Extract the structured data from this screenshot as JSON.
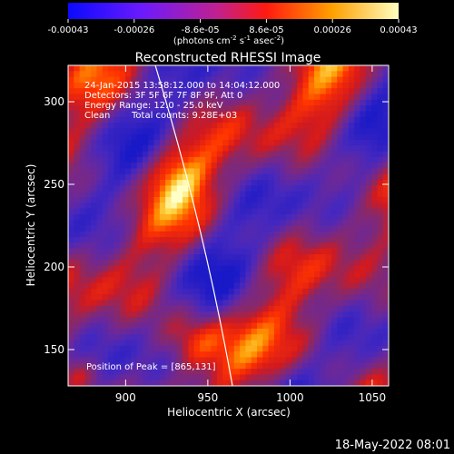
{
  "chart_data": {
    "type": "heatmap",
    "title": "Reconstructed RHESSI Image",
    "xlabel": "Heliocentric X (arcsec)",
    "ylabel": "Heliocentric Y (arcsec)",
    "xlim": [
      865,
      1060
    ],
    "ylim": [
      128,
      322
    ],
    "xticks": [
      "900",
      "950",
      "1000",
      "1050"
    ],
    "yticks": [
      "150",
      "200",
      "250",
      "300"
    ],
    "colorbar": {
      "ticks": [
        "-0.00043",
        "-0.00026",
        "-8.6e-05",
        "8.6e-05",
        "0.00026",
        "0.00043"
      ],
      "range": [
        -0.00043,
        0.00043
      ],
      "units_prefix": "(photons cm",
      "units_sup1": "-2",
      "units_mid": " s",
      "units_sup2": "-1",
      "units_mid2": " asec",
      "units_sup3": "-2",
      "units_suffix": ")"
    },
    "annotations": {
      "time": "24-Jan-2015 13:58:12.000 to 14:04:12.000",
      "detectors": "Detectors: 3F 5F 6F 7F 8F 9F, Att 0",
      "energy": "Energy Range: 12.0 - 25.0 keV",
      "method": "Clean",
      "counts": "Total counts: 9.28E+03",
      "peak": "Position of Peak = [865,131]"
    }
  },
  "footer": {
    "date": "18-May-2022 08:01"
  },
  "colors": {
    "background": "#000000",
    "text": "#ffffff"
  }
}
